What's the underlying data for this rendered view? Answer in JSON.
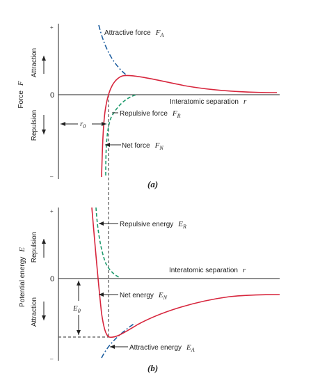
{
  "colors": {
    "net": "#d7263d",
    "attractive": "#1f5fa0",
    "repulsive": "#1d9a6c",
    "axis": "#222222",
    "guide": "#555555"
  },
  "top": {
    "plus": "+",
    "minus": "–",
    "zero": "0",
    "y_main": "Force",
    "y_main_var": "F",
    "y_up": "Attraction",
    "y_down": "Repulsion",
    "x_axis_label": "Interatomic separation",
    "x_axis_var": "r",
    "attractive_label": "Attractive force",
    "attractive_var": "F",
    "attractive_sub": "A",
    "repulsive_label": "Repulsive force",
    "repulsive_var": "F",
    "repulsive_sub": "R",
    "net_label": "Net force",
    "net_var": "F",
    "net_sub": "N",
    "r0_var": "r",
    "r0_sub": "0",
    "caption": "(a)"
  },
  "bottom": {
    "plus": "+",
    "minus": "–",
    "zero": "0",
    "y_main": "Potential energy",
    "y_main_var": "E",
    "y_up": "Repulsion",
    "y_down": "Attraction",
    "x_axis_label": "Interatomic separation",
    "x_axis_var": "r",
    "repulsive_label": "Repulsive energy",
    "repulsive_var": "E",
    "repulsive_sub": "R",
    "net_label": "Net energy",
    "net_var": "E",
    "net_sub": "N",
    "attractive_label": "Attractive energy",
    "attractive_var": "E",
    "attractive_sub": "A",
    "e0_var": "E",
    "e0_sub": "0",
    "caption": "(b)"
  }
}
